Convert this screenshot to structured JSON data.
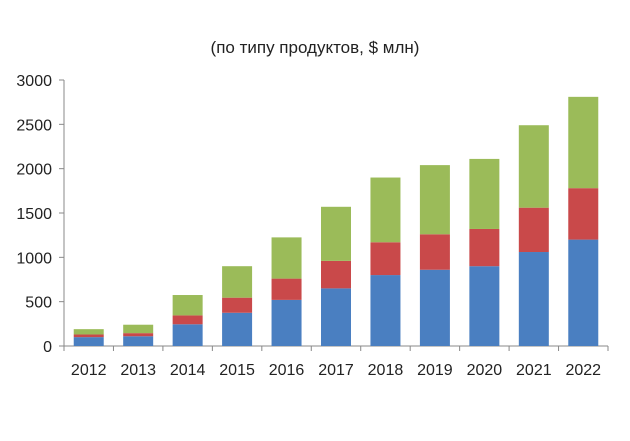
{
  "chart_data": {
    "type": "bar",
    "stacked": true,
    "subtitle": "(по типу продуктов, $ млн)",
    "categories": [
      "2012",
      "2013",
      "2014",
      "2015",
      "2016",
      "2017",
      "2018",
      "2019",
      "2020",
      "2021",
      "2022"
    ],
    "series": [
      {
        "color": "#4a7fc1",
        "values": [
          100,
          110,
          245,
          375,
          520,
          650,
          800,
          860,
          900,
          1060,
          1200
        ]
      },
      {
        "color": "#c9494a",
        "values": [
          30,
          35,
          100,
          170,
          240,
          310,
          370,
          400,
          420,
          500,
          580
        ]
      },
      {
        "color": "#9bbb59",
        "values": [
          60,
          95,
          230,
          355,
          465,
          610,
          730,
          780,
          790,
          930,
          1030
        ]
      }
    ],
    "ylim": [
      0,
      3000
    ],
    "yticks": [
      0,
      500,
      1000,
      1500,
      2000,
      2500,
      3000
    ],
    "grid": false,
    "legend": "none"
  }
}
